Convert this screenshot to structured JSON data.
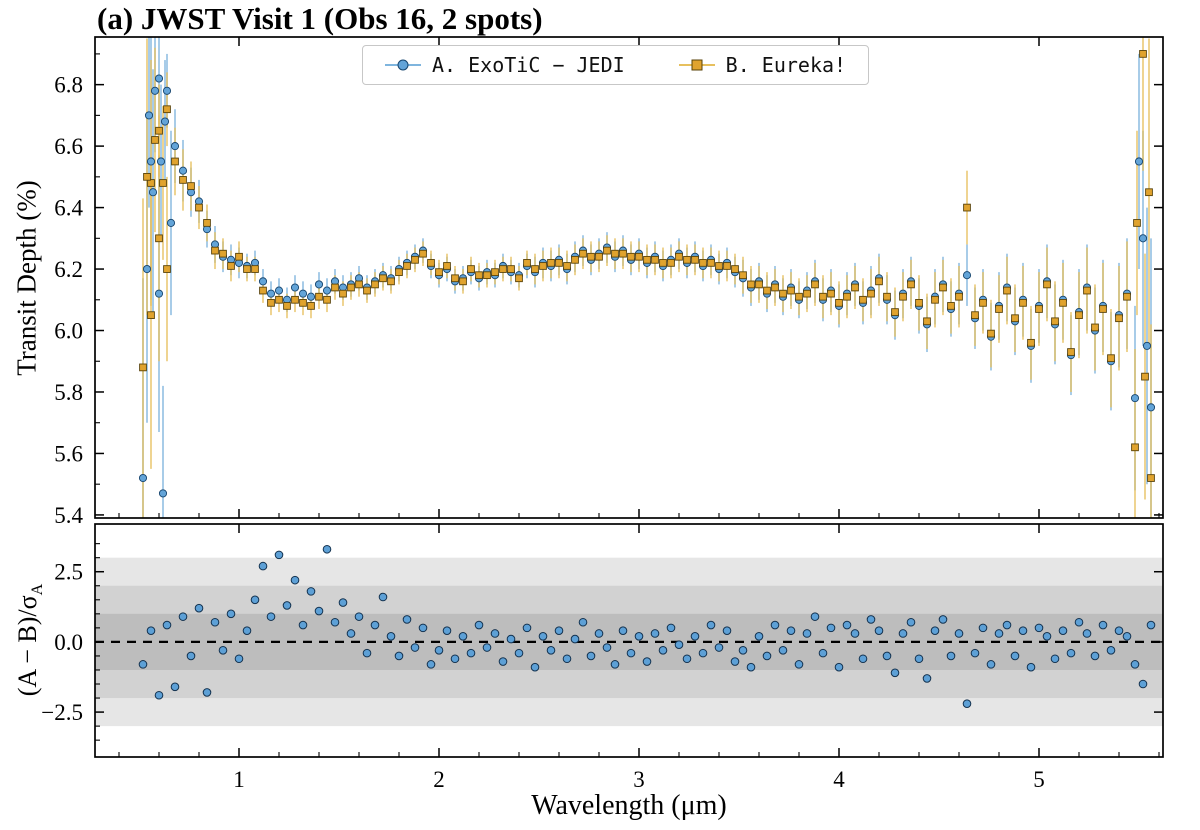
{
  "chart_data": [
    {
      "type": "scatter",
      "panel": "spectrum",
      "title": "(a) JWST Visit 1 (Obs 16, 2 spots)",
      "xlabel": "Wavelength (μm)",
      "ylabel": "Transit Depth (%)",
      "xlim": [
        0.28,
        5.62
      ],
      "ylim": [
        5.39,
        6.955
      ],
      "xticks": [
        1,
        2,
        3,
        4,
        5
      ],
      "yticks": [
        5.4,
        5.6,
        5.8,
        6.0,
        6.2,
        6.4,
        6.6,
        6.8
      ],
      "grid": false,
      "legend_position": "upper center",
      "x_start": 0.52,
      "x_step": 0.04,
      "n_points": 127,
      "series": [
        {
          "name": "A. ExoTiC − JEDI",
          "marker": "circle",
          "color": "#63a4d8",
          "edge": "#17456e",
          "errcolor": "#7fb5de",
          "y": [
            5.52,
            6.55,
            6.82,
            6.78,
            6.6,
            6.52,
            6.45,
            6.42,
            6.33,
            6.28,
            6.24,
            6.23,
            6.22,
            6.21,
            6.22,
            6.16,
            6.12,
            6.13,
            6.1,
            6.14,
            6.12,
            6.11,
            6.15,
            6.13,
            6.16,
            6.14,
            6.15,
            6.17,
            6.14,
            6.16,
            6.18,
            6.17,
            6.2,
            6.22,
            6.24,
            6.26,
            6.21,
            6.18,
            6.2,
            6.16,
            6.17,
            6.19,
            6.17,
            6.19,
            6.18,
            6.21,
            6.19,
            6.18,
            6.21,
            6.19,
            6.22,
            6.21,
            6.23,
            6.2,
            6.24,
            6.26,
            6.23,
            6.25,
            6.27,
            6.24,
            6.26,
            6.23,
            6.25,
            6.22,
            6.24,
            6.21,
            6.23,
            6.25,
            6.22,
            6.24,
            6.21,
            6.23,
            6.2,
            6.22,
            6.19,
            6.17,
            6.14,
            6.16,
            6.12,
            6.15,
            6.11,
            6.14,
            6.1,
            6.13,
            6.16,
            6.1,
            6.13,
            6.08,
            6.12,
            6.15,
            6.09,
            6.13,
            6.17,
            6.1,
            6.05,
            6.12,
            6.16,
            6.08,
            6.02,
            6.11,
            6.15,
            6.07,
            6.12,
            6.18,
            6.04,
            6.1,
            5.98,
            6.08,
            6.14,
            6.03,
            6.1,
            5.95,
            6.08,
            6.16,
            6.02,
            6.1,
            5.92,
            6.06,
            6.14,
            6.0,
            6.08,
            5.9,
            6.05,
            6.12,
            5.78,
            6.3,
            5.75
          ],
          "yerr": [
            0.65,
            0.45,
            0.15,
            0.12,
            0.12,
            0.1,
            0.08,
            0.07,
            0.06,
            0.06,
            0.05,
            0.05,
            0.05,
            0.04,
            0.04,
            0.04,
            0.04,
            0.04,
            0.04,
            0.04,
            0.04,
            0.04,
            0.04,
            0.04,
            0.04,
            0.04,
            0.04,
            0.04,
            0.04,
            0.04,
            0.04,
            0.04,
            0.04,
            0.04,
            0.04,
            0.04,
            0.04,
            0.04,
            0.04,
            0.04,
            0.04,
            0.04,
            0.04,
            0.04,
            0.04,
            0.04,
            0.04,
            0.04,
            0.04,
            0.05,
            0.05,
            0.05,
            0.05,
            0.05,
            0.05,
            0.05,
            0.05,
            0.05,
            0.05,
            0.05,
            0.05,
            0.05,
            0.05,
            0.05,
            0.05,
            0.05,
            0.05,
            0.05,
            0.05,
            0.05,
            0.05,
            0.05,
            0.05,
            0.05,
            0.05,
            0.06,
            0.06,
            0.06,
            0.06,
            0.06,
            0.06,
            0.06,
            0.06,
            0.06,
            0.07,
            0.07,
            0.07,
            0.07,
            0.07,
            0.07,
            0.07,
            0.08,
            0.08,
            0.08,
            0.08,
            0.08,
            0.08,
            0.09,
            0.09,
            0.09,
            0.09,
            0.09,
            0.1,
            0.1,
            0.1,
            0.1,
            0.11,
            0.11,
            0.11,
            0.11,
            0.12,
            0.12,
            0.12,
            0.12,
            0.13,
            0.13,
            0.13,
            0.14,
            0.14,
            0.14,
            0.15,
            0.16,
            0.17,
            0.18,
            0.3,
            0.35,
            0.55
          ],
          "x_extra": [
            0.54,
            0.55,
            0.57,
            0.58,
            0.6,
            0.61,
            0.62,
            0.63,
            0.66,
            5.5,
            5.54
          ],
          "y_extra": [
            6.2,
            6.7,
            6.45,
            6.78,
            6.12,
            6.55,
            5.47,
            6.68,
            6.35,
            6.55,
            5.95
          ],
          "yerr_extra": [
            0.5,
            0.3,
            0.4,
            0.2,
            0.45,
            0.25,
            0.35,
            0.2,
            0.3,
            0.35,
            0.45
          ]
        },
        {
          "name": "B. Eureka!",
          "marker": "square",
          "color": "#e0a32e",
          "edge": "#59430a",
          "errcolor": "#e7c05e",
          "y": [
            5.88,
            6.48,
            6.65,
            6.72,
            6.55,
            6.49,
            6.47,
            6.4,
            6.35,
            6.26,
            6.25,
            6.21,
            6.24,
            6.2,
            6.2,
            6.13,
            6.09,
            6.1,
            6.08,
            6.1,
            6.09,
            6.08,
            6.11,
            6.1,
            6.14,
            6.12,
            6.14,
            6.15,
            6.13,
            6.15,
            6.17,
            6.16,
            6.19,
            6.21,
            6.23,
            6.25,
            6.22,
            6.19,
            6.21,
            6.17,
            6.16,
            6.2,
            6.18,
            6.18,
            6.19,
            6.2,
            6.2,
            6.17,
            6.22,
            6.2,
            6.21,
            6.22,
            6.22,
            6.21,
            6.23,
            6.25,
            6.24,
            6.24,
            6.26,
            6.25,
            6.25,
            6.24,
            6.24,
            6.23,
            6.23,
            6.22,
            6.22,
            6.24,
            6.23,
            6.23,
            6.22,
            6.22,
            6.21,
            6.21,
            6.2,
            6.18,
            6.15,
            6.15,
            6.13,
            6.14,
            6.12,
            6.13,
            6.11,
            6.12,
            6.15,
            6.11,
            6.12,
            6.09,
            6.11,
            6.14,
            6.1,
            6.12,
            6.16,
            6.11,
            6.06,
            6.11,
            6.15,
            6.09,
            6.03,
            6.1,
            6.14,
            6.08,
            6.11,
            6.4,
            6.05,
            6.09,
            5.99,
            6.07,
            6.13,
            6.04,
            6.09,
            5.96,
            6.07,
            6.15,
            6.03,
            6.09,
            5.93,
            6.05,
            6.13,
            6.01,
            6.07,
            5.91,
            6.04,
            6.11,
            5.62,
            6.9,
            5.52
          ],
          "yerr": [
            0.55,
            0.4,
            0.15,
            0.12,
            0.11,
            0.1,
            0.08,
            0.07,
            0.06,
            0.06,
            0.05,
            0.05,
            0.05,
            0.04,
            0.04,
            0.04,
            0.04,
            0.04,
            0.04,
            0.04,
            0.04,
            0.04,
            0.04,
            0.04,
            0.04,
            0.04,
            0.04,
            0.04,
            0.04,
            0.04,
            0.04,
            0.04,
            0.04,
            0.04,
            0.04,
            0.04,
            0.04,
            0.04,
            0.04,
            0.04,
            0.04,
            0.04,
            0.04,
            0.04,
            0.04,
            0.04,
            0.04,
            0.04,
            0.04,
            0.05,
            0.05,
            0.05,
            0.05,
            0.05,
            0.05,
            0.05,
            0.05,
            0.05,
            0.05,
            0.05,
            0.05,
            0.05,
            0.05,
            0.05,
            0.05,
            0.05,
            0.05,
            0.05,
            0.05,
            0.05,
            0.05,
            0.05,
            0.05,
            0.05,
            0.05,
            0.06,
            0.06,
            0.06,
            0.06,
            0.06,
            0.06,
            0.06,
            0.06,
            0.06,
            0.07,
            0.07,
            0.07,
            0.07,
            0.07,
            0.07,
            0.07,
            0.08,
            0.08,
            0.08,
            0.08,
            0.08,
            0.08,
            0.09,
            0.09,
            0.09,
            0.09,
            0.09,
            0.1,
            0.12,
            0.1,
            0.1,
            0.11,
            0.11,
            0.11,
            0.11,
            0.12,
            0.12,
            0.12,
            0.12,
            0.13,
            0.13,
            0.13,
            0.14,
            0.14,
            0.14,
            0.15,
            0.16,
            0.17,
            0.18,
            0.32,
            0.38,
            0.5
          ],
          "x_extra": [
            0.54,
            0.56,
            0.58,
            0.6,
            0.62,
            0.64,
            5.49,
            5.53,
            5.55
          ],
          "y_extra": [
            6.5,
            6.05,
            6.62,
            6.3,
            6.48,
            6.2,
            6.35,
            5.85,
            6.45
          ],
          "yerr_extra": [
            0.45,
            0.5,
            0.3,
            0.4,
            0.25,
            0.3,
            0.3,
            0.4,
            0.5
          ]
        }
      ]
    },
    {
      "type": "scatter",
      "panel": "residuals",
      "ylabel": "(A − B)/σ_A",
      "ylabel_main": "(A − B)/σ",
      "ylabel_sub": "A",
      "ylim": [
        -4.1,
        4.2
      ],
      "yticks": [
        -2.5,
        0.0,
        2.5
      ],
      "zero_line": 0,
      "zero_line_style": "dashed",
      "sigma_bands": [
        1,
        2,
        3
      ],
      "band_colors": [
        "#bdbdbd",
        "#d2d2d2",
        "#e6e6e6"
      ],
      "point_color": "#5da0d6",
      "point_edge": "#14324f",
      "values": [
        -0.8,
        0.4,
        -1.9,
        0.6,
        -1.6,
        0.9,
        -0.5,
        1.2,
        -1.8,
        0.7,
        -0.3,
        1.0,
        -0.6,
        0.4,
        1.5,
        2.7,
        0.9,
        3.1,
        1.3,
        2.2,
        0.6,
        1.8,
        1.1,
        3.3,
        0.7,
        1.4,
        0.3,
        0.9,
        -0.4,
        0.6,
        1.6,
        0.2,
        -0.5,
        0.8,
        -0.2,
        0.5,
        -0.8,
        -0.3,
        0.4,
        -0.6,
        0.2,
        -0.4,
        0.6,
        -0.2,
        0.3,
        -0.7,
        0.1,
        -0.4,
        0.5,
        -0.9,
        0.2,
        -0.3,
        0.4,
        -0.6,
        0.1,
        0.7,
        -0.5,
        0.3,
        -0.2,
        -0.8,
        0.4,
        -0.4,
        0.2,
        -0.7,
        0.3,
        -0.3,
        0.5,
        -0.1,
        -0.6,
        0.2,
        -0.4,
        0.6,
        -0.2,
        0.4,
        -0.7,
        -0.3,
        -0.9,
        0.2,
        -0.5,
        0.6,
        -0.3,
        0.4,
        -0.8,
        0.3,
        0.9,
        -0.4,
        0.5,
        -0.9,
        0.6,
        0.3,
        -0.6,
        0.8,
        0.4,
        -0.5,
        -1.1,
        0.3,
        0.7,
        -0.6,
        -1.3,
        0.4,
        0.8,
        -0.5,
        0.3,
        -2.2,
        -0.4,
        0.5,
        -0.8,
        0.3,
        0.6,
        -0.5,
        0.4,
        -0.9,
        0.5,
        0.2,
        -0.6,
        0.4,
        -0.4,
        0.7,
        0.3,
        -0.5,
        0.6,
        -0.3,
        0.4,
        0.2,
        -0.8,
        -1.5,
        0.6
      ]
    }
  ],
  "legend": {
    "items": [
      {
        "label": "A. ExoTiC − JEDI",
        "marker": "circle-with-errorbar",
        "color": "#63a4d8"
      },
      {
        "label": "B. Eureka!",
        "marker": "square-with-errorbar",
        "color": "#e0a32e"
      }
    ]
  }
}
